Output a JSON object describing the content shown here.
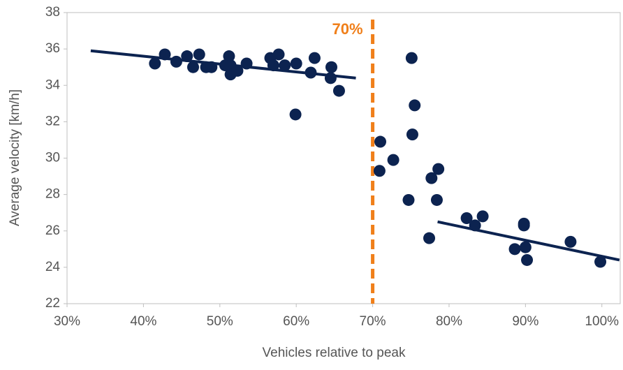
{
  "chart_data": {
    "type": "scatter",
    "x_label": "Vehicles relative to peak",
    "y_label": "Average velocity [km/h]",
    "xlim": [
      30,
      102.4
    ],
    "ylim": [
      22,
      38
    ],
    "xticks": [
      {
        "value": 30,
        "label": "30%"
      },
      {
        "value": 40,
        "label": "40%"
      },
      {
        "value": 50,
        "label": "50%"
      },
      {
        "value": 60,
        "label": "60%"
      },
      {
        "value": 70,
        "label": "70%"
      },
      {
        "value": 80,
        "label": "80%"
      },
      {
        "value": 90,
        "label": "90%"
      },
      {
        "value": 100,
        "label": "100%"
      }
    ],
    "yticks": [
      22,
      24,
      26,
      28,
      30,
      32,
      34,
      36,
      38
    ],
    "series": [
      {
        "color": "#0c2350",
        "x": [
          41.5,
          42.8,
          44.3,
          45.7,
          47.3,
          46.5,
          48.2,
          48.9,
          50.7,
          51.2,
          51.4,
          51.4,
          52.3,
          53.5,
          56.6,
          57.0,
          57.7,
          58.5,
          60.0,
          59.9,
          61.9,
          62.4,
          64.6,
          64.5,
          65.6,
          71.0,
          70.9,
          72.7,
          74.7,
          75.1,
          75.5,
          75.2,
          77.4,
          77.7,
          78.6,
          78.4,
          82.3,
          83.4,
          84.4,
          88.6,
          89.8,
          89.8,
          90.0,
          90.2,
          95.9,
          99.8
        ],
        "values": [
          35.2,
          35.7,
          35.3,
          35.6,
          35.7,
          35.0,
          35.0,
          35.0,
          35.1,
          35.6,
          35.1,
          34.6,
          34.8,
          35.2,
          35.5,
          35.1,
          35.7,
          35.1,
          35.2,
          32.4,
          34.7,
          35.5,
          35.0,
          34.4,
          33.7,
          30.9,
          29.3,
          29.9,
          27.7,
          35.5,
          32.9,
          31.3,
          25.6,
          28.9,
          29.4,
          27.7,
          26.7,
          26.3,
          26.8,
          25.0,
          26.4,
          26.3,
          25.1,
          24.4,
          25.4,
          24.3
        ]
      }
    ],
    "trendlines": [
      {
        "color": "#0c2350",
        "x": [
          33.1,
          67.8
        ],
        "values": [
          35.9,
          34.4
        ]
      },
      {
        "color": "#0c2350",
        "x": [
          78.5,
          102.3
        ],
        "values": [
          26.5,
          24.4
        ]
      }
    ],
    "threshold": {
      "x": 70,
      "text": "70%",
      "color": "#f07f1a"
    }
  }
}
